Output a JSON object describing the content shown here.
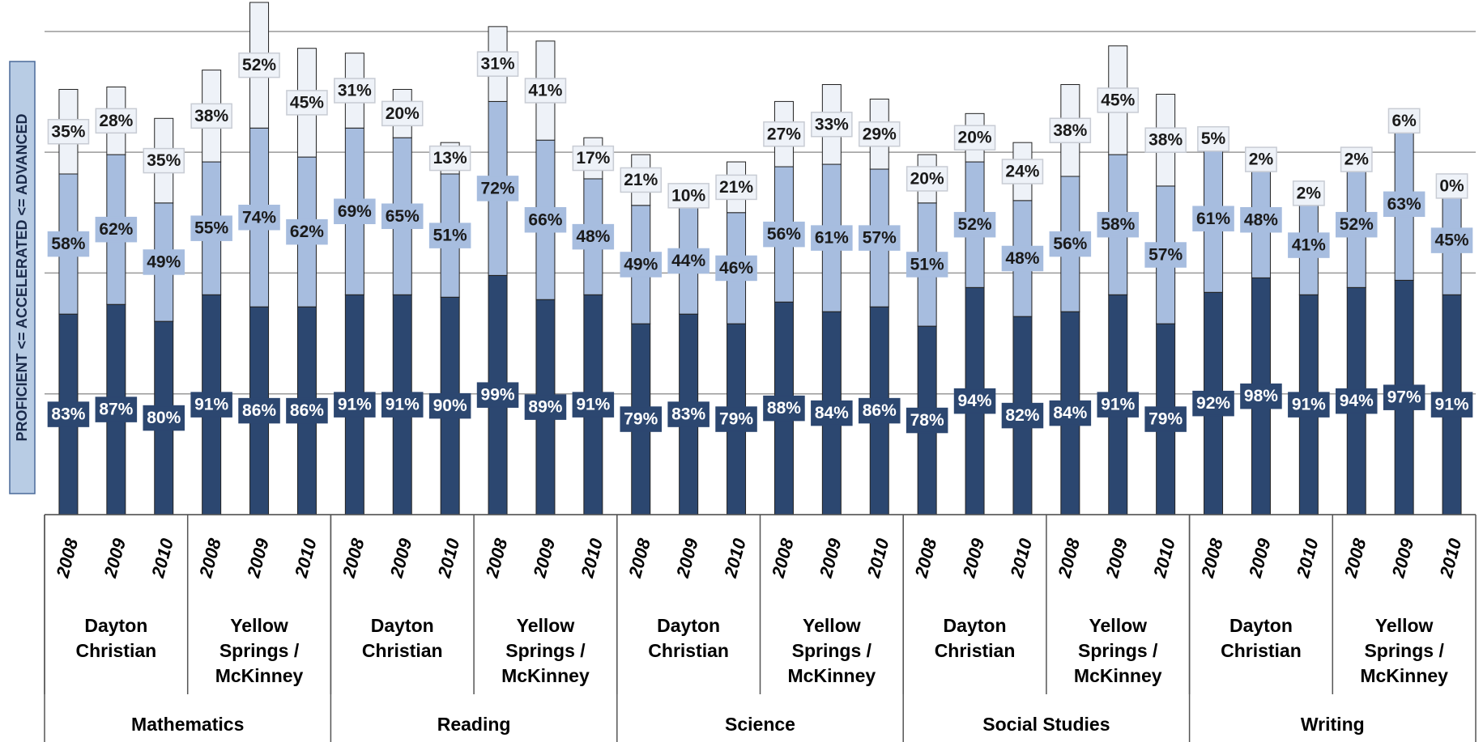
{
  "chart_data": {
    "type": "stacked-bar",
    "y_label": "PROFICIENT <= ACCELERATED <= ADVANCED",
    "categories": [
      "2008",
      "2009",
      "2010",
      "2008",
      "2009",
      "2010",
      "2008",
      "2009",
      "2010",
      "2008",
      "2009",
      "2010",
      "2008",
      "2009",
      "2010",
      "2008",
      "2009",
      "2010",
      "2008",
      "2009",
      "2010",
      "2008",
      "2009",
      "2010",
      "2008",
      "2009",
      "2010",
      "2008",
      "2009",
      "2010"
    ],
    "groups": [
      "Dayton Christian",
      "Yellow Springs / McKinney",
      "Dayton Christian",
      "Yellow Springs / McKinney",
      "Dayton Christian",
      "Yellow Springs / McKinney",
      "Dayton Christian",
      "Yellow Springs / McKinney",
      "Dayton Christian",
      "Yellow Springs / McKinney"
    ],
    "subjects": [
      "Mathematics",
      "Reading",
      "Science",
      "Social Studies",
      "Writing"
    ],
    "series": [
      {
        "color": "#2c4770",
        "label_color": "#ffffff",
        "values": [
          83,
          87,
          80,
          91,
          86,
          86,
          91,
          91,
          90,
          99,
          89,
          91,
          79,
          83,
          79,
          88,
          84,
          86,
          78,
          94,
          82,
          84,
          91,
          79,
          92,
          98,
          91,
          94,
          97,
          91
        ],
        "value_labels": [
          "83%",
          "87%",
          "80%",
          "91%",
          "86%",
          "86%",
          "91%",
          "91%",
          "90%",
          "99%",
          "89%",
          "91%",
          "79%",
          "83%",
          "79%",
          "88%",
          "84%",
          "86%",
          "78%",
          "94%",
          "82%",
          "84%",
          "91%",
          "79%",
          "92%",
          "98%",
          "91%",
          "94%",
          "97%",
          "91%"
        ]
      },
      {
        "color": "#a7bddf",
        "label_color": "#1a1a1a",
        "values": [
          58,
          62,
          49,
          55,
          74,
          62,
          69,
          65,
          51,
          72,
          66,
          48,
          49,
          44,
          46,
          56,
          61,
          57,
          51,
          52,
          48,
          56,
          58,
          57,
          61,
          48,
          41,
          52,
          63,
          45
        ],
        "value_labels": [
          "58%",
          "62%",
          "49%",
          "55%",
          "74%",
          "62%",
          "69%",
          "65%",
          "51%",
          "72%",
          "66%",
          "48%",
          "49%",
          "44%",
          "46%",
          "56%",
          "61%",
          "57%",
          "51%",
          "52%",
          "48%",
          "56%",
          "58%",
          "57%",
          "61%",
          "48%",
          "41%",
          "52%",
          "63%",
          "45%"
        ]
      },
      {
        "color": "#eef2f8",
        "label_color": "#1a1a1a",
        "values": [
          35,
          28,
          35,
          38,
          52,
          45,
          31,
          20,
          13,
          31,
          41,
          17,
          21,
          10,
          21,
          27,
          33,
          29,
          20,
          20,
          24,
          38,
          45,
          38,
          5,
          2,
          2,
          2,
          6,
          0
        ],
        "value_labels": [
          "35%",
          "28%",
          "35%",
          "38%",
          "52%",
          "45%",
          "31%",
          "20%",
          "13%",
          "31%",
          "41%",
          "17%",
          "21%",
          "10%",
          "21%",
          "27%",
          "33%",
          "29%",
          "20%",
          "20%",
          "24%",
          "38%",
          "45%",
          "38%",
          "5%",
          "2%",
          "2%",
          "2%",
          "6%",
          "0%"
        ]
      }
    ],
    "ylim": [
      0,
      213
    ],
    "yticks": [
      0,
      50,
      100,
      150,
      200
    ],
    "grid": true
  }
}
